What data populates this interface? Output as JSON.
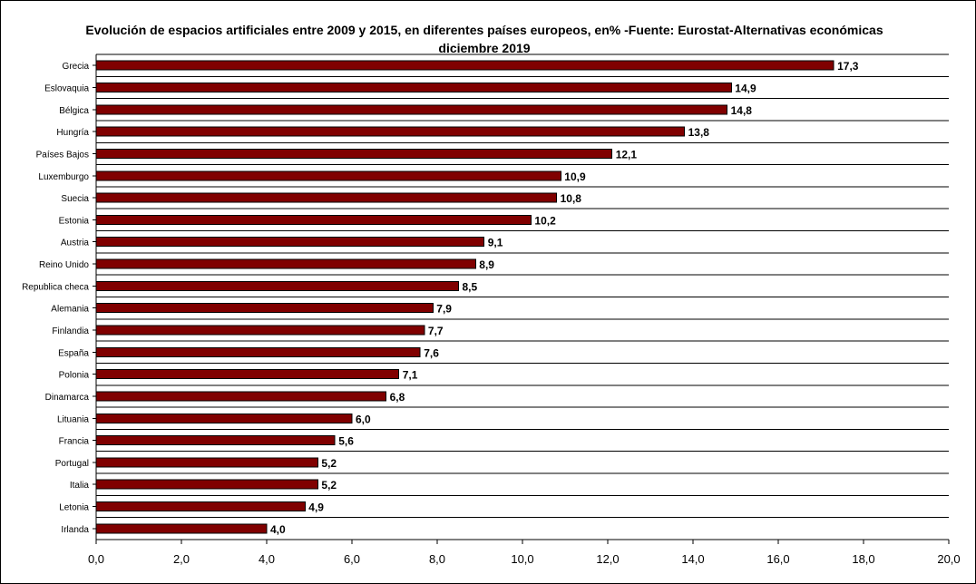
{
  "chart_data": {
    "type": "bar",
    "orientation": "horizontal",
    "title": "Evolución de espacios artificiales entre 2009 y 2015, en diferentes países europeos, en% -Fuente: Eurostat-Alternativas económicas diciembre 2019",
    "categories": [
      "Grecia",
      "Eslovaquia",
      "Bélgica",
      "Hungría",
      "Países Bajos",
      "Luxemburgo",
      "Suecia",
      "Estonia",
      "Austria",
      "Reino Unido",
      "Republica checa",
      "Alemania",
      "Finlandia",
      "España",
      "Polonia",
      "Dinamarca",
      "Lituania",
      "Francia",
      "Portugal",
      "Italia",
      "Letonia",
      "Irlanda"
    ],
    "values": [
      17.3,
      14.9,
      14.8,
      13.8,
      12.1,
      10.9,
      10.8,
      10.2,
      9.1,
      8.9,
      8.5,
      7.9,
      7.7,
      7.6,
      7.1,
      6.8,
      6.0,
      5.6,
      5.2,
      5.2,
      4.9,
      4.0
    ],
    "value_labels": [
      "17,3",
      "14,9",
      "14,8",
      "13,8",
      "12,1",
      "10,9",
      "10,8",
      "10,2",
      "9,1",
      "8,9",
      "8,5",
      "7,9",
      "7,7",
      "7,6",
      "7,1",
      "6,8",
      "6,0",
      "5,6",
      "5,2",
      "5,2",
      "4,9",
      "4,0"
    ],
    "xlim": [
      0,
      20
    ],
    "x_ticks": [
      0,
      2,
      4,
      6,
      8,
      10,
      12,
      14,
      16,
      18,
      20
    ],
    "x_tick_labels": [
      "0,0",
      "2,0",
      "4,0",
      "6,0",
      "8,0",
      "10,0",
      "12,0",
      "14,0",
      "16,0",
      "18,0",
      "20,0"
    ],
    "grid": "horizontal",
    "legend": "none",
    "bar_color": "#800000",
    "xlabel": "",
    "ylabel": ""
  }
}
